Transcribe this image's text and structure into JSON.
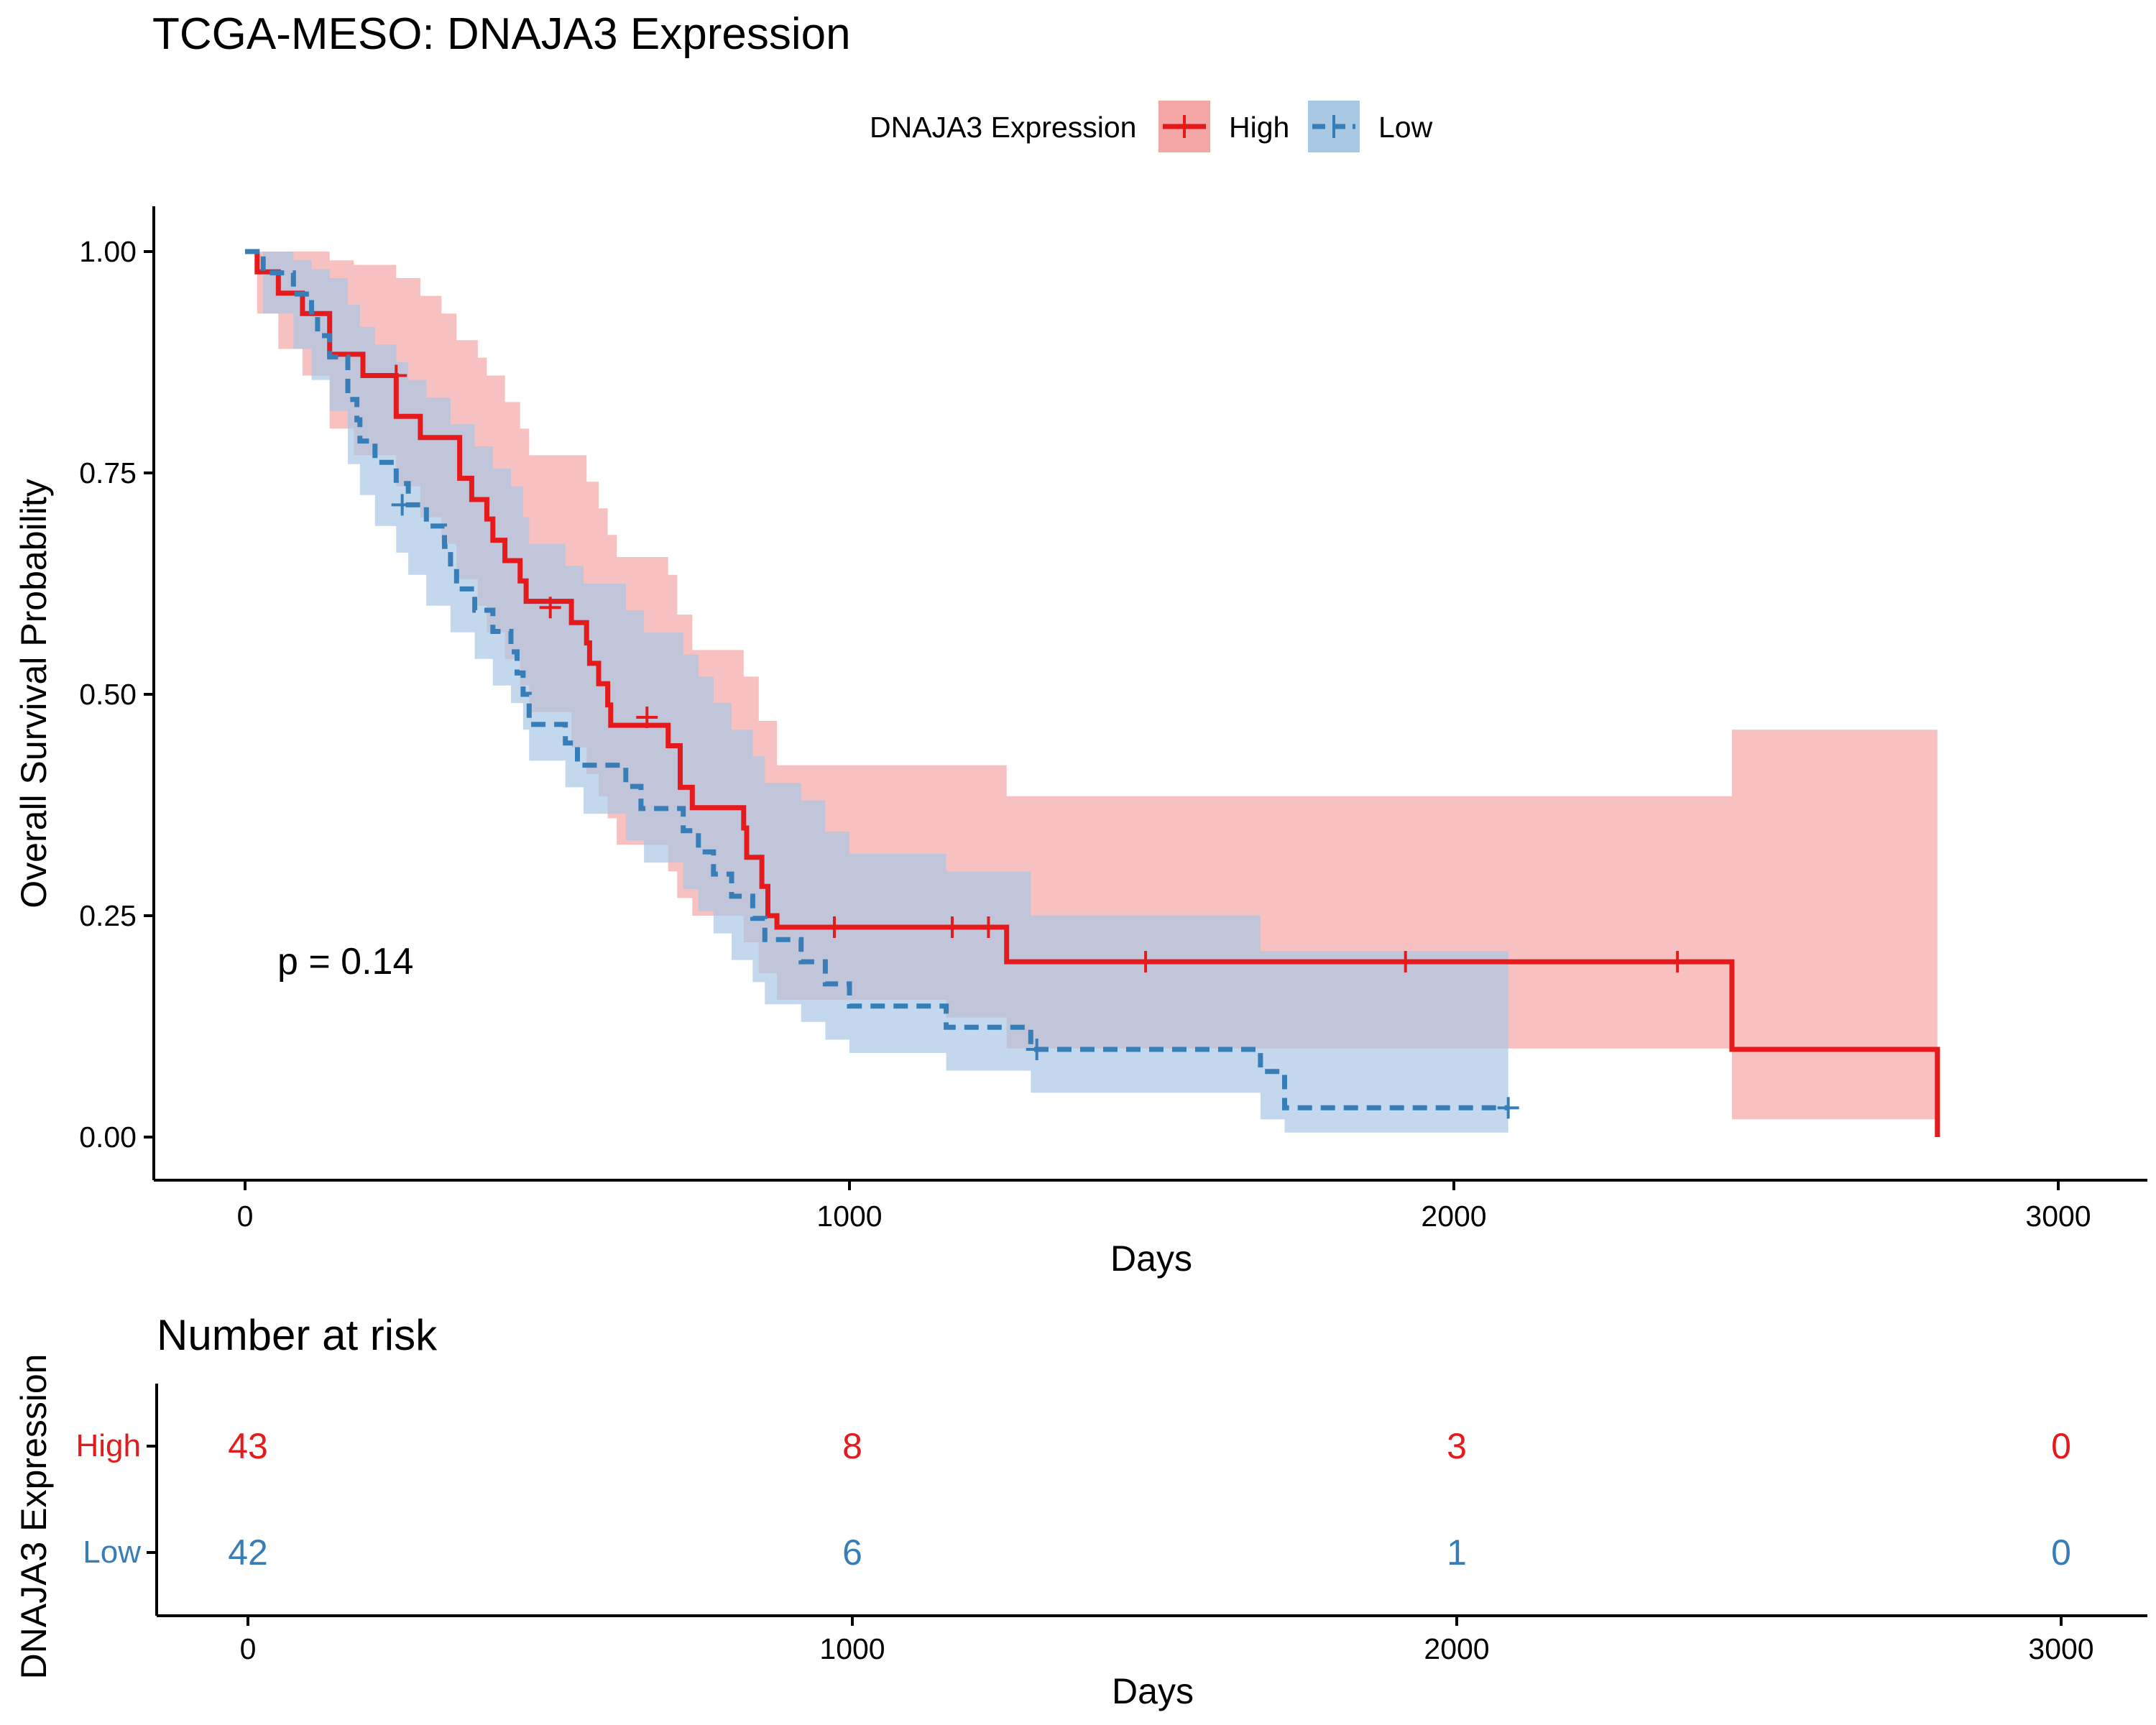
{
  "title": "TCGA-MESO: DNAJA3 Expression",
  "colors": {
    "high": "#e41a1c",
    "low": "#377eb8",
    "high_band": "#f4a5a6",
    "low_band": "#a9c8e4",
    "axis": "#000000"
  },
  "legend": {
    "title": "DNAJA3 Expression",
    "items": [
      {
        "label": "High",
        "key": "high"
      },
      {
        "label": "Low",
        "key": "low"
      }
    ]
  },
  "pvalue_text": "p = 0.14",
  "chart_data": [
    {
      "type": "line",
      "subtype": "kaplan-meier step",
      "title": "TCGA-MESO: DNAJA3 Expression",
      "xlabel": "Days",
      "ylabel": "Overall Survival Probability",
      "xlim": [
        -150,
        3150
      ],
      "ylim": [
        -0.05,
        1.05
      ],
      "xticks": [
        0,
        1000,
        2000,
        3000
      ],
      "yticks": [
        0,
        0.25,
        0.5,
        0.75,
        1.0
      ],
      "ytick_labels": [
        "0.00",
        "0.25",
        "0.50",
        "0.75",
        "1.00"
      ],
      "grid": false,
      "legend_position": "top",
      "series": [
        {
          "name": "High",
          "key": "high",
          "line_style": "solid",
          "steps": [
            [
              0,
              1.0
            ],
            [
              20,
              0.977
            ],
            [
              55,
              0.953
            ],
            [
              95,
              0.93
            ],
            [
              140,
              0.884
            ],
            [
              195,
              0.86
            ],
            [
              250,
              0.814
            ],
            [
              290,
              0.79
            ],
            [
              355,
              0.744
            ],
            [
              375,
              0.72
            ],
            [
              400,
              0.698
            ],
            [
              410,
              0.674
            ],
            [
              430,
              0.651
            ],
            [
              455,
              0.628
            ],
            [
              465,
              0.605
            ],
            [
              540,
              0.581
            ],
            [
              565,
              0.558
            ],
            [
              570,
              0.535
            ],
            [
              585,
              0.512
            ],
            [
              600,
              0.488
            ],
            [
              605,
              0.465
            ],
            [
              700,
              0.442
            ],
            [
              720,
              0.395
            ],
            [
              740,
              0.372
            ],
            [
              825,
              0.349
            ],
            [
              830,
              0.316
            ],
            [
              855,
              0.283
            ],
            [
              865,
              0.25
            ],
            [
              880,
              0.237
            ],
            [
              1260,
              0.198
            ],
            [
              2460,
              0.099
            ],
            [
              2800,
              0.0
            ]
          ],
          "end": 2800,
          "censor": [
            [
              250,
              0.86
            ],
            [
              505,
              0.598
            ],
            [
              665,
              0.474
            ],
            [
              975,
              0.237
            ],
            [
              1170,
              0.237
            ],
            [
              1230,
              0.237
            ],
            [
              1490,
              0.198
            ],
            [
              1920,
              0.198
            ],
            [
              2370,
              0.198
            ]
          ],
          "ci": [
            [
              0,
              1.0,
              1.0
            ],
            [
              20,
              1.0,
              0.93
            ],
            [
              55,
              1.0,
              0.89
            ],
            [
              95,
              1.0,
              0.86
            ],
            [
              140,
              0.99,
              0.8
            ],
            [
              180,
              0.985,
              0.77
            ],
            [
              250,
              0.97,
              0.735
            ],
            [
              290,
              0.95,
              0.7
            ],
            [
              325,
              0.93,
              0.67
            ],
            [
              350,
              0.9,
              0.63
            ],
            [
              385,
              0.88,
              0.6
            ],
            [
              400,
              0.86,
              0.57
            ],
            [
              430,
              0.83,
              0.54
            ],
            [
              455,
              0.8,
              0.51
            ],
            [
              470,
              0.77,
              0.48
            ],
            [
              540,
              0.77,
              0.44
            ],
            [
              565,
              0.74,
              0.41
            ],
            [
              585,
              0.71,
              0.385
            ],
            [
              600,
              0.68,
              0.36
            ],
            [
              615,
              0.655,
              0.33
            ],
            [
              700,
              0.635,
              0.3
            ],
            [
              715,
              0.59,
              0.27
            ],
            [
              740,
              0.55,
              0.25
            ],
            [
              825,
              0.52,
              0.22
            ],
            [
              850,
              0.47,
              0.185
            ],
            [
              880,
              0.42,
              0.155
            ],
            [
              1160,
              0.42,
              0.135
            ],
            [
              1260,
              0.385,
              0.1
            ],
            [
              2460,
              0.46,
              0.02
            ]
          ]
        },
        {
          "name": "Low",
          "key": "low",
          "line_style": "dashed",
          "steps": [
            [
              0,
              1.0
            ],
            [
              30,
              0.976
            ],
            [
              80,
              0.952
            ],
            [
              110,
              0.929
            ],
            [
              120,
              0.905
            ],
            [
              140,
              0.881
            ],
            [
              170,
              0.833
            ],
            [
              185,
              0.81
            ],
            [
              190,
              0.786
            ],
            [
              215,
              0.762
            ],
            [
              250,
              0.738
            ],
            [
              270,
              0.714
            ],
            [
              300,
              0.69
            ],
            [
              330,
              0.667
            ],
            [
              340,
              0.643
            ],
            [
              350,
              0.619
            ],
            [
              380,
              0.595
            ],
            [
              410,
              0.571
            ],
            [
              440,
              0.548
            ],
            [
              450,
              0.524
            ],
            [
              460,
              0.5
            ],
            [
              470,
              0.466
            ],
            [
              530,
              0.445
            ],
            [
              550,
              0.42
            ],
            [
              630,
              0.396
            ],
            [
              655,
              0.371
            ],
            [
              725,
              0.346
            ],
            [
              750,
              0.322
            ],
            [
              775,
              0.297
            ],
            [
              805,
              0.272
            ],
            [
              840,
              0.247
            ],
            [
              860,
              0.223
            ],
            [
              920,
              0.198
            ],
            [
              960,
              0.173
            ],
            [
              1000,
              0.148
            ],
            [
              1160,
              0.124
            ],
            [
              1300,
              0.099
            ],
            [
              1680,
              0.074
            ],
            [
              1720,
              0.033
            ],
            [
              2090,
              0.033
            ]
          ],
          "end": 2090,
          "censor": [
            [
              260,
              0.714
            ],
            [
              1310,
              0.099
            ],
            [
              2090,
              0.033
            ]
          ],
          "ci": [
            [
              0,
              1.0,
              1.0
            ],
            [
              30,
              1.0,
              0.93
            ],
            [
              80,
              0.99,
              0.89
            ],
            [
              110,
              0.98,
              0.855
            ],
            [
              140,
              0.97,
              0.82
            ],
            [
              170,
              0.94,
              0.76
            ],
            [
              190,
              0.915,
              0.725
            ],
            [
              215,
              0.895,
              0.69
            ],
            [
              250,
              0.875,
              0.66
            ],
            [
              270,
              0.855,
              0.635
            ],
            [
              300,
              0.835,
              0.6
            ],
            [
              340,
              0.805,
              0.57
            ],
            [
              380,
              0.78,
              0.54
            ],
            [
              410,
              0.755,
              0.51
            ],
            [
              440,
              0.735,
              0.49
            ],
            [
              460,
              0.7,
              0.46
            ],
            [
              470,
              0.67,
              0.425
            ],
            [
              530,
              0.645,
              0.395
            ],
            [
              560,
              0.625,
              0.365
            ],
            [
              630,
              0.595,
              0.335
            ],
            [
              660,
              0.57,
              0.31
            ],
            [
              725,
              0.545,
              0.28
            ],
            [
              750,
              0.52,
              0.255
            ],
            [
              775,
              0.49,
              0.23
            ],
            [
              805,
              0.46,
              0.2
            ],
            [
              840,
              0.43,
              0.175
            ],
            [
              860,
              0.4,
              0.15
            ],
            [
              920,
              0.38,
              0.13
            ],
            [
              960,
              0.345,
              0.11
            ],
            [
              1000,
              0.32,
              0.095
            ],
            [
              1160,
              0.3,
              0.075
            ],
            [
              1300,
              0.25,
              0.05
            ],
            [
              1680,
              0.21,
              0.02
            ],
            [
              1720,
              0.21,
              0.005
            ]
          ]
        }
      ],
      "annotations": [
        "p = 0.14"
      ]
    },
    {
      "type": "table",
      "title": "Number at risk",
      "xlabel": "Days",
      "ylabel": "DNAJA3 Expression",
      "xticks": [
        0,
        1000,
        2000,
        3000
      ],
      "rows": [
        {
          "name": "High",
          "key": "high",
          "values": [
            43,
            8,
            3,
            0
          ]
        },
        {
          "name": "Low",
          "key": "low",
          "values": [
            42,
            6,
            1,
            0
          ]
        }
      ]
    }
  ]
}
